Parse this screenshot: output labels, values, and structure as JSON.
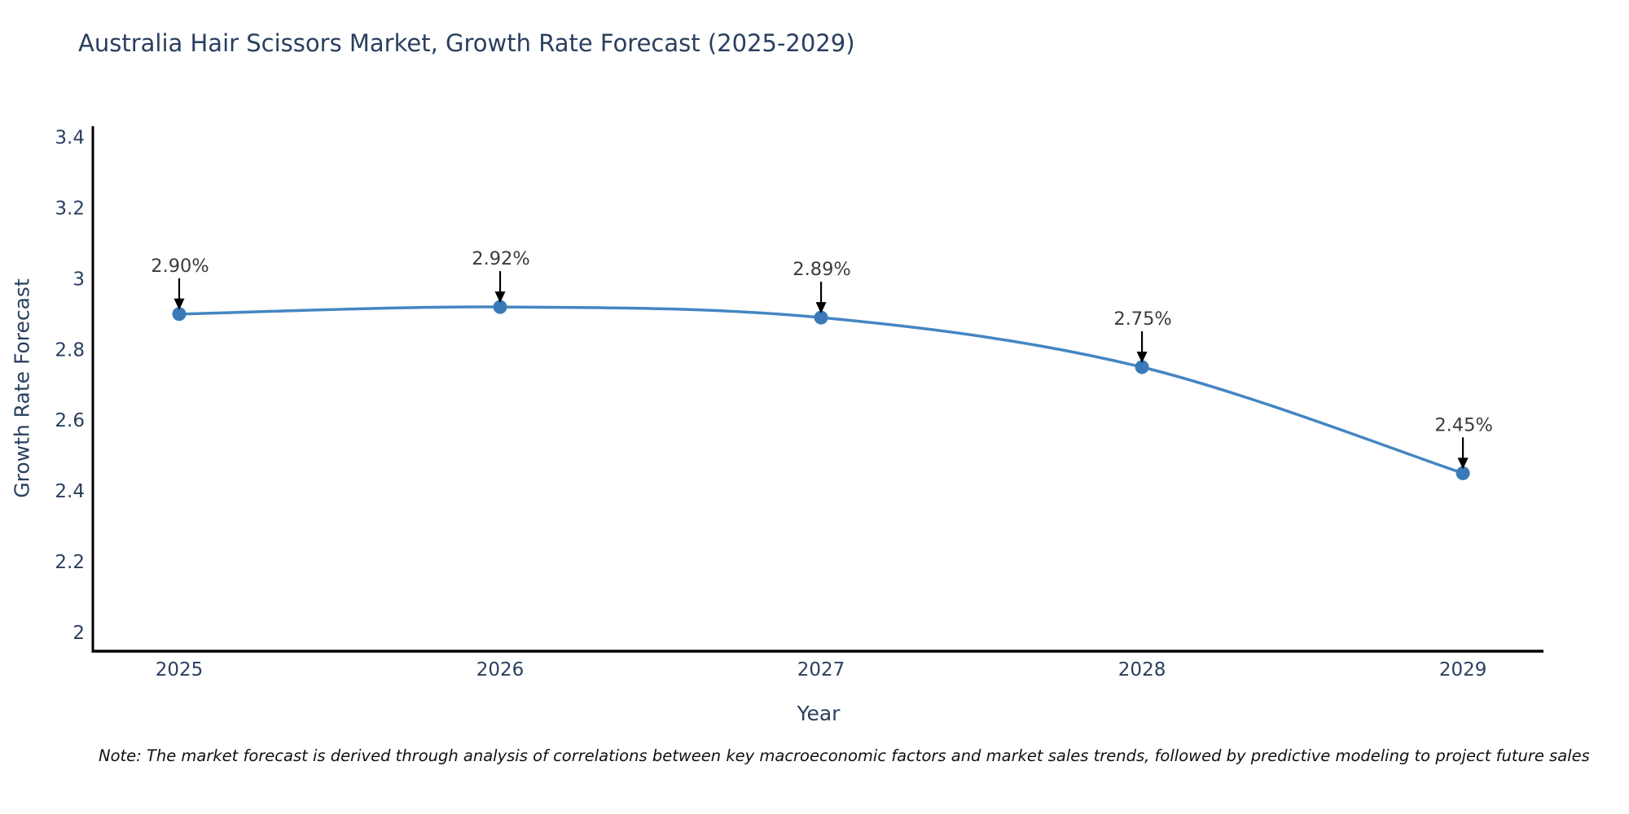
{
  "title": "Australia Hair Scissors Market, Growth Rate Forecast (2025-2029)",
  "note": "Note: The market forecast is derived through analysis of correlations between key macroeconomic factors and market sales trends, followed by predictive modeling to project future sales",
  "chart_data": {
    "type": "line",
    "title": "Australia Hair Scissors Market, Growth Rate Forecast (2025-2029)",
    "xlabel": "Year",
    "ylabel": "Growth Rate Forecast",
    "x": [
      2025,
      2026,
      2027,
      2028,
      2029
    ],
    "x_tick_labels": [
      "2025",
      "2026",
      "2027",
      "2028",
      "2029"
    ],
    "values": [
      2.9,
      2.92,
      2.89,
      2.75,
      2.45
    ],
    "point_labels": [
      "2.90%",
      "2.92%",
      "2.89%",
      "2.75%",
      "2.45%"
    ],
    "y_ticks": [
      2,
      2.2,
      2.4,
      2.6,
      2.8,
      3,
      3.2,
      3.4
    ],
    "y_tick_labels": [
      "2",
      "2.2",
      "2.4",
      "2.6",
      "2.8",
      "3",
      "3.2",
      "3.4"
    ],
    "ylim": [
      1.947,
      3.431
    ],
    "xlim": [
      2024.731,
      2029.251
    ],
    "grid": false,
    "legend": false,
    "line_shape": "spline",
    "colors": {
      "line": "#4486c2",
      "marker": "#3a7ab8",
      "axis_line": "#000000",
      "tick_label": "#2a3f5f",
      "axis_title": "#2a3f5f",
      "title": "#2a3f5f",
      "annotation_text": "#3c3c3c",
      "annotation_arrow": "#000000",
      "background": "#ffffff"
    }
  }
}
